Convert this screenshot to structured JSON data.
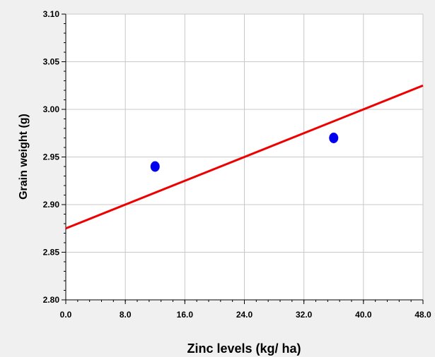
{
  "chart_data": {
    "type": "scatter",
    "title": "",
    "xlabel": "Zinc levels (kg/ ha)",
    "ylabel": "Grain weight (g)",
    "xlim": [
      0,
      48
    ],
    "ylim": [
      2.8,
      3.1
    ],
    "x_ticks": [
      "0.0",
      "8.0",
      "16.0",
      "24.0",
      "32.0",
      "40.0",
      "48.0"
    ],
    "y_ticks": [
      "2.80",
      "2.85",
      "2.90",
      "2.95",
      "3.00",
      "3.05",
      "3.10"
    ],
    "grid": true,
    "points": [
      {
        "x": 12,
        "y": 2.94
      },
      {
        "x": 36,
        "y": 2.97
      }
    ],
    "trendline": {
      "x": [
        0,
        48
      ],
      "y": [
        2.875,
        3.025
      ]
    },
    "colors": {
      "points": "#0000ee",
      "trendline": "#ee0000",
      "grid": "#c8c8c8",
      "plot_bg": "#ffffff",
      "page_bg": "#f0f0f0"
    }
  }
}
